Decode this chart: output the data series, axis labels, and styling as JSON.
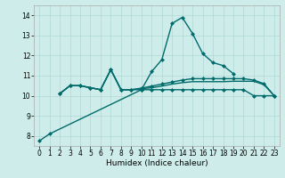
{
  "xlabel": "Humidex (Indice chaleur)",
  "xlim": [
    -0.5,
    23.5
  ],
  "ylim": [
    7.5,
    14.5
  ],
  "yticks": [
    8,
    9,
    10,
    11,
    12,
    13,
    14
  ],
  "xticks": [
    0,
    1,
    2,
    3,
    4,
    5,
    6,
    7,
    8,
    9,
    10,
    11,
    12,
    13,
    14,
    15,
    16,
    17,
    18,
    19,
    20,
    21,
    22,
    23
  ],
  "bg_color": "#ceecea",
  "grid_color": "#aed8d4",
  "line_color": "#006b6b",
  "line1_x": [
    0,
    1,
    10,
    11,
    12,
    13,
    14,
    15,
    16,
    17,
    18,
    19
  ],
  "line1_y": [
    7.75,
    8.1,
    10.3,
    11.2,
    11.8,
    13.6,
    13.9,
    13.1,
    12.1,
    11.65,
    11.5,
    11.1
  ],
  "line2_x": [
    2,
    3,
    4,
    5,
    6,
    7,
    8,
    9,
    10,
    11,
    12,
    13,
    14,
    15,
    16,
    17,
    18,
    19,
    20,
    21,
    22,
    23
  ],
  "line2_y": [
    10.1,
    10.5,
    10.5,
    10.4,
    10.3,
    11.3,
    10.3,
    10.3,
    10.3,
    10.3,
    10.3,
    10.3,
    10.3,
    10.3,
    10.3,
    10.3,
    10.3,
    10.3,
    10.3,
    10.0,
    10.0,
    10.0
  ],
  "line3_x": [
    2,
    3,
    4,
    5,
    6,
    7,
    8,
    9,
    10,
    11,
    12,
    13,
    14,
    15,
    16,
    17,
    18,
    19,
    20,
    21,
    22,
    23
  ],
  "line3_y": [
    10.1,
    10.5,
    10.5,
    10.4,
    10.3,
    11.3,
    10.3,
    10.3,
    10.35,
    10.4,
    10.48,
    10.58,
    10.65,
    10.7,
    10.7,
    10.7,
    10.7,
    10.72,
    10.72,
    10.72,
    10.55,
    10.0
  ],
  "line4_x": [
    2,
    3,
    4,
    5,
    6,
    7,
    8,
    9,
    10,
    11,
    12,
    13,
    14,
    15,
    16,
    17,
    18,
    19,
    20,
    21,
    22,
    23
  ],
  "line4_y": [
    10.1,
    10.5,
    10.5,
    10.4,
    10.3,
    11.3,
    10.3,
    10.3,
    10.38,
    10.48,
    10.58,
    10.68,
    10.78,
    10.85,
    10.85,
    10.85,
    10.85,
    10.85,
    10.85,
    10.78,
    10.6,
    10.0
  ]
}
